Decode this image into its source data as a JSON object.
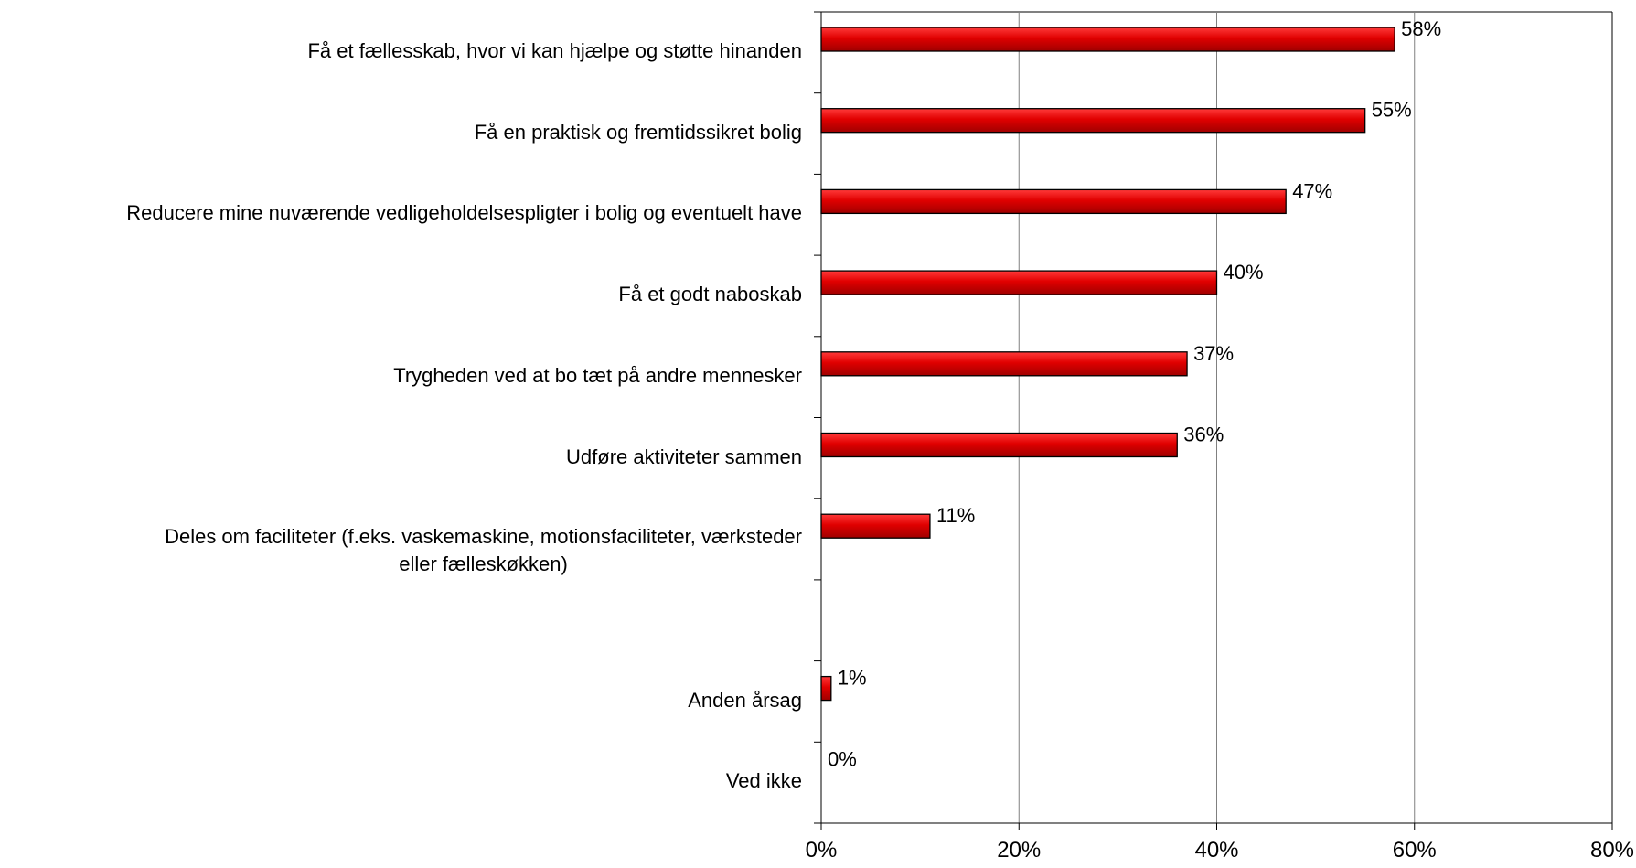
{
  "chart_data": {
    "type": "bar",
    "orientation": "horizontal",
    "categories": [
      "Få et fællesskab, hvor vi kan hjælpe og støtte hinanden",
      "Få en praktisk og fremtidssikret bolig",
      "Reducere mine nuværende vedligeholdelsespligter i bolig og eventuelt have",
      "Få et godt naboskab",
      "Trygheden ved at bo tæt på andre mennesker",
      "Udføre aktiviteter sammen",
      "Deles om faciliteter (f.eks. vaskemaskine, motionsfaciliteter, værksteder eller fælleskøkken)",
      "",
      "Anden årsag",
      "Ved ikke"
    ],
    "category_lines": [
      [
        "Få et fællesskab, hvor vi kan hjælpe og støtte hinanden"
      ],
      [
        "Få en praktisk og fremtidssikret bolig"
      ],
      [
        "Reducere mine nuværende vedligeholdelsespligter i bolig og eventuelt have"
      ],
      [
        "Få et godt naboskab"
      ],
      [
        "Trygheden ved at bo tæt på andre mennesker"
      ],
      [
        "Udføre aktiviteter sammen"
      ],
      [
        "Deles om faciliteter (f.eks. vaskemaskine, motionsfaciliteter, værksteder",
        "eller fælleskøkken)"
      ],
      [],
      [
        "Anden årsag"
      ],
      [
        "Ved ikke"
      ]
    ],
    "values": [
      58,
      55,
      47,
      40,
      37,
      36,
      11,
      null,
      1,
      0
    ],
    "value_labels": [
      "58%",
      "55%",
      "47%",
      "40%",
      "37%",
      "36%",
      "11%",
      "",
      "1%",
      "0%"
    ],
    "xlim": [
      0,
      80
    ],
    "xticks": [
      0,
      20,
      40,
      60,
      80
    ],
    "xtick_labels": [
      "0%",
      "20%",
      "40%",
      "60%",
      "80%"
    ],
    "grid": "vertical",
    "bar_color": "#e00000",
    "bar_edge_color": "#000000",
    "title": "",
    "xlabel": "",
    "ylabel": ""
  }
}
